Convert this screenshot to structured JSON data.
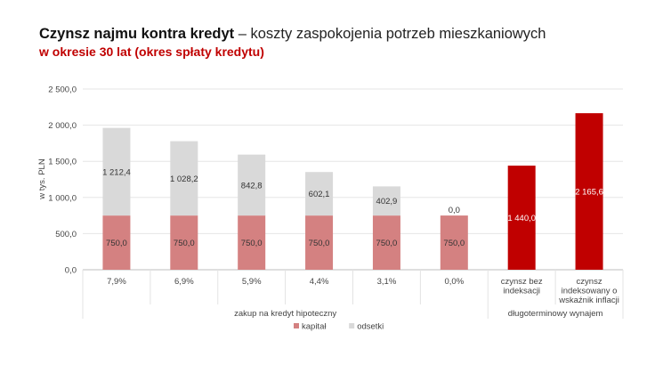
{
  "title": {
    "bold": "Czynsz najmu kontra kredyt",
    "rest": " – koszty zaspokojenia potrzeb mieszkaniowych"
  },
  "subtitle": "w okresie 30 lat (okres spłaty kredytu)",
  "chart_data": {
    "type": "bar",
    "stacked": true,
    "ylabel": "w tys. PLN",
    "ylim": [
      0,
      2500
    ],
    "yticks": [
      "0,0",
      "500,0",
      "1 000,0",
      "1 500,0",
      "2 000,0",
      "2 500,0"
    ],
    "grid": true,
    "categories": [
      "7,9%",
      "6,9%",
      "5,9%",
      "4,4%",
      "3,1%",
      "0,0%",
      "czynsz bez indeksacji",
      "czynsz indeksowany o wskaźnik inflacji"
    ],
    "category_lines": [
      [
        "7,9%"
      ],
      [
        "6,9%"
      ],
      [
        "5,9%"
      ],
      [
        "4,4%"
      ],
      [
        "3,1%"
      ],
      [
        "0,0%"
      ],
      [
        "czynsz bez",
        "indeksacji"
      ],
      [
        "czynsz",
        "indeksowany o",
        "wskaźnik inflacji"
      ]
    ],
    "groups": [
      {
        "label": "zakup na kredyt hipoteczny",
        "categories": 6
      },
      {
        "label": "długoterminowy wynajem",
        "categories": 2
      }
    ],
    "series": [
      {
        "name": "kapitał",
        "color": "#d48181",
        "values": [
          750.0,
          750.0,
          750.0,
          750.0,
          750.0,
          750.0,
          null,
          null
        ],
        "labels": [
          "750,0",
          "750,0",
          "750,0",
          "750,0",
          "750,0",
          "750,0",
          null,
          null
        ]
      },
      {
        "name": "odsetki",
        "color": "#d9d9d9",
        "values": [
          1212.4,
          1028.2,
          842.8,
          602.1,
          402.9,
          0.0,
          null,
          null
        ],
        "labels": [
          "1 212,4",
          "1 028,2",
          "842,8",
          "602,1",
          "402,9",
          "0,0",
          null,
          null
        ]
      },
      {
        "name": "",
        "color": "#c00000",
        "values": [
          null,
          null,
          null,
          null,
          null,
          null,
          1440.0,
          2165.6
        ],
        "labels": [
          null,
          null,
          null,
          null,
          null,
          null,
          "1 440,0",
          "2 165,6"
        ]
      }
    ],
    "legend": {
      "position": "bottom",
      "entries": [
        "kapitał",
        "odsetki"
      ]
    }
  }
}
